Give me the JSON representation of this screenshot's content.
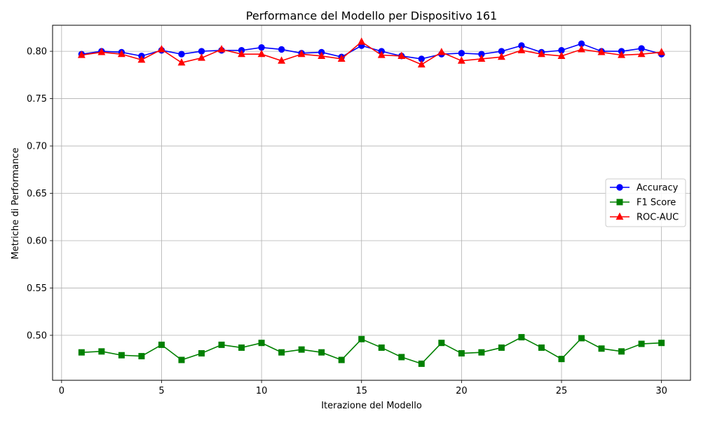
{
  "chart_data": {
    "type": "line",
    "title": "Performance del Modello per Dispositivo 161",
    "xlabel": "Iterazione del Modello",
    "ylabel": "Metriche di Performance",
    "xlim": [
      -0.45,
      31.45
    ],
    "ylim": [
      0.4525,
      0.8275
    ],
    "x_ticks": [
      0,
      5,
      10,
      15,
      20,
      25,
      30
    ],
    "y_ticks": [
      0.5,
      0.55,
      0.6,
      0.65,
      0.7,
      0.75,
      0.8
    ],
    "y_tick_labels": [
      "0.50",
      "0.55",
      "0.60",
      "0.65",
      "0.70",
      "0.75",
      "0.80"
    ],
    "grid": true,
    "legend_position": "center-right",
    "x": [
      1,
      2,
      3,
      4,
      5,
      6,
      7,
      8,
      9,
      10,
      11,
      12,
      13,
      14,
      15,
      16,
      17,
      18,
      19,
      20,
      21,
      22,
      23,
      24,
      25,
      26,
      27,
      28,
      29,
      30
    ],
    "series": [
      {
        "name": "Accuracy",
        "color": "#0000ff",
        "marker": "circle",
        "values": [
          0.797,
          0.8,
          0.799,
          0.795,
          0.801,
          0.797,
          0.8,
          0.801,
          0.801,
          0.804,
          0.802,
          0.798,
          0.799,
          0.794,
          0.806,
          0.8,
          0.795,
          0.792,
          0.797,
          0.798,
          0.797,
          0.8,
          0.806,
          0.799,
          0.801,
          0.808,
          0.8,
          0.8,
          0.803,
          0.797
        ]
      },
      {
        "name": "F1 Score",
        "color": "#008000",
        "marker": "square",
        "values": [
          0.482,
          0.483,
          0.479,
          0.478,
          0.49,
          0.474,
          0.481,
          0.49,
          0.487,
          0.492,
          0.482,
          0.485,
          0.482,
          0.474,
          0.496,
          0.487,
          0.477,
          0.47,
          0.492,
          0.481,
          0.482,
          0.487,
          0.498,
          0.487,
          0.475,
          0.497,
          0.486,
          0.483,
          0.491,
          0.492
        ]
      },
      {
        "name": "ROC-AUC",
        "color": "#ff0000",
        "marker": "triangle",
        "values": [
          0.796,
          0.799,
          0.797,
          0.791,
          0.802,
          0.788,
          0.793,
          0.802,
          0.797,
          0.797,
          0.79,
          0.797,
          0.795,
          0.792,
          0.81,
          0.796,
          0.795,
          0.786,
          0.799,
          0.79,
          0.792,
          0.794,
          0.801,
          0.797,
          0.795,
          0.802,
          0.799,
          0.796,
          0.797,
          0.799
        ]
      }
    ]
  }
}
